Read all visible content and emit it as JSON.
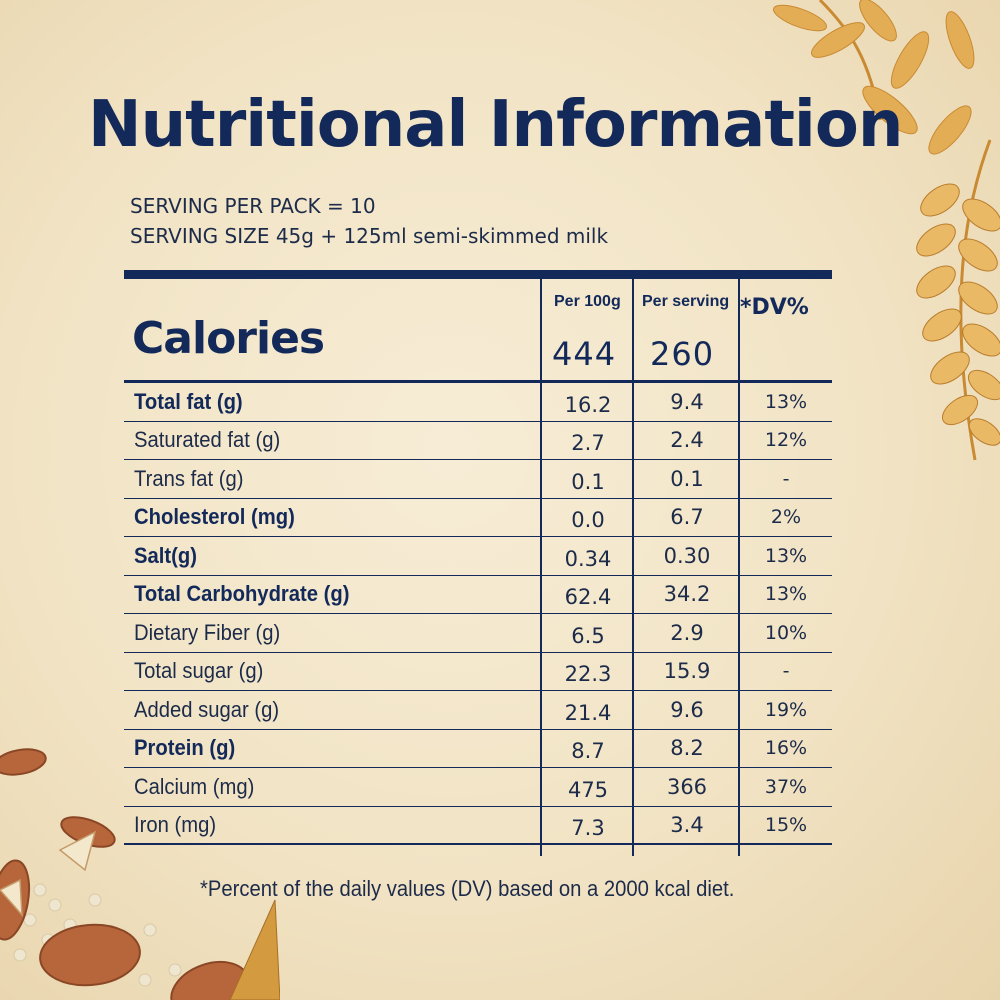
{
  "title": "Nutritional Information",
  "serving": {
    "per_pack": "SERVING PER PACK = 10",
    "size": "SERVING SIZE 45g + 125ml semi-skimmed milk"
  },
  "header": {
    "calories_label": "Calories",
    "col_per100g": "Per 100g",
    "col_per_serving": "Per serving",
    "col_dv": "*DV%",
    "calories_per100g": "444",
    "calories_per_serving": "260"
  },
  "rows": [
    {
      "name": "Total fat (g)",
      "bold": true,
      "per100g": "16.2",
      "per_serving": "9.4",
      "dv": "13%"
    },
    {
      "name": "Saturated fat (g)",
      "bold": false,
      "per100g": "2.7",
      "per_serving": "2.4",
      "dv": "12%"
    },
    {
      "name": "Trans fat (g)",
      "bold": false,
      "per100g": "0.1",
      "per_serving": "0.1",
      "dv": "-"
    },
    {
      "name": "Cholesterol (mg)",
      "bold": true,
      "per100g": "0.0",
      "per_serving": "6.7",
      "dv": "2%"
    },
    {
      "name": "Salt(g)",
      "bold": true,
      "per100g": "0.34",
      "per_serving": "0.30",
      "dv": "13%"
    },
    {
      "name": "Total Carbohydrate (g)",
      "bold": true,
      "per100g": "62.4",
      "per_serving": "34.2",
      "dv": "13%"
    },
    {
      "name": "Dietary Fiber (g)",
      "bold": false,
      "per100g": "6.5",
      "per_serving": "2.9",
      "dv": "10%"
    },
    {
      "name": "Total sugar (g)",
      "bold": false,
      "per100g": "22.3",
      "per_serving": "15.9",
      "dv": "-"
    },
    {
      "name": "Added sugar (g)",
      "bold": false,
      "per100g": "21.4",
      "per_serving": "9.6",
      "dv": "19%"
    },
    {
      "name": "Protein (g)",
      "bold": true,
      "per100g": "8.7",
      "per_serving": "8.2",
      "dv": "16%"
    },
    {
      "name": "Calcium (mg)",
      "bold": false,
      "per100g": "475",
      "per_serving": "366",
      "dv": "37%"
    },
    {
      "name": "Iron (mg)",
      "bold": false,
      "per100g": "7.3",
      "per_serving": "3.4",
      "dv": "15%"
    }
  ],
  "footnote": "*Percent of the daily values (DV) based on a 2000 kcal diet.",
  "colors": {
    "navy": "#13295a",
    "background": "#f1e3c4",
    "grain": "#e0a84a",
    "almond": "#b7653a"
  }
}
